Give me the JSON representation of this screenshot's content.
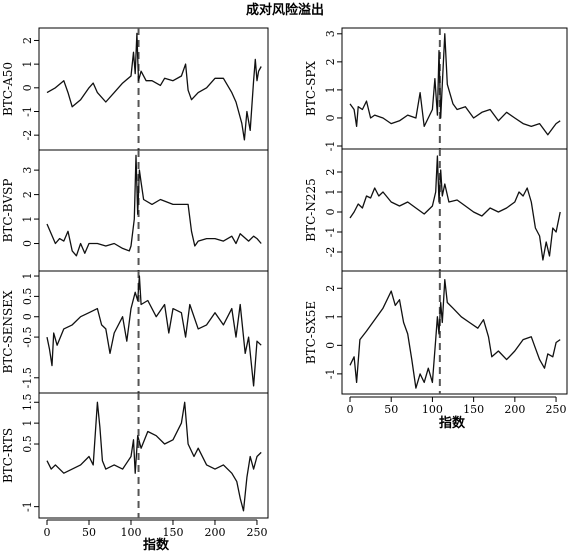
{
  "figure": {
    "title": "成对风险溢出",
    "xlabel": "指数"
  },
  "chart_data": {
    "type": "line",
    "x_range": [
      0,
      256
    ],
    "x_ticks": [
      0,
      50,
      100,
      150,
      200,
      250
    ],
    "event_line_x": [
      108,
      110
    ],
    "panels": [
      {
        "ylabel": "BTC-A50",
        "ylim": [
          -2.5,
          2.4
        ],
        "yticks": [
          -2,
          -1,
          0,
          1,
          2
        ],
        "points": [
          [
            0,
            -0.2
          ],
          [
            10,
            0
          ],
          [
            20,
            0.3
          ],
          [
            25,
            -0.2
          ],
          [
            30,
            -0.8
          ],
          [
            40,
            -0.5
          ],
          [
            50,
            0
          ],
          [
            55,
            0.2
          ],
          [
            60,
            -0.2
          ],
          [
            70,
            -0.6
          ],
          [
            80,
            -0.2
          ],
          [
            90,
            0.2
          ],
          [
            100,
            0.5
          ],
          [
            103,
            1.5
          ],
          [
            105,
            0.6
          ],
          [
            107,
            2.3
          ],
          [
            109,
            0.3
          ],
          [
            112,
            0.7
          ],
          [
            118,
            0.3
          ],
          [
            125,
            0.3
          ],
          [
            135,
            0.1
          ],
          [
            140,
            0.4
          ],
          [
            150,
            0.3
          ],
          [
            160,
            0.5
          ],
          [
            165,
            1.0
          ],
          [
            168,
            -0.1
          ],
          [
            172,
            -0.5
          ],
          [
            180,
            -0.2
          ],
          [
            190,
            0.0
          ],
          [
            200,
            0.4
          ],
          [
            210,
            0.4
          ],
          [
            215,
            0.1
          ],
          [
            220,
            -0.2
          ],
          [
            225,
            -0.6
          ],
          [
            232,
            -1.5
          ],
          [
            235,
            -2.2
          ],
          [
            238,
            -1.0
          ],
          [
            242,
            -1.8
          ],
          [
            246,
            0.3
          ],
          [
            248,
            1.2
          ],
          [
            250,
            0.3
          ],
          [
            252,
            0.7
          ],
          [
            255,
            0.9
          ]
        ]
      },
      {
        "ylabel": "BTC-BVSP",
        "ylim": [
          -1.0,
          3.7
        ],
        "yticks": [
          0,
          1,
          2,
          3
        ],
        "points": [
          [
            0,
            0.8
          ],
          [
            5,
            0.4
          ],
          [
            10,
            0.0
          ],
          [
            15,
            0.2
          ],
          [
            20,
            0.1
          ],
          [
            25,
            0.5
          ],
          [
            30,
            -0.3
          ],
          [
            35,
            -0.5
          ],
          [
            40,
            0.0
          ],
          [
            45,
            -0.4
          ],
          [
            50,
            0.0
          ],
          [
            60,
            0.0
          ],
          [
            70,
            -0.1
          ],
          [
            80,
            0.0
          ],
          [
            90,
            -0.2
          ],
          [
            98,
            -0.3
          ],
          [
            100,
            -0.1
          ],
          [
            104,
            1.0
          ],
          [
            106,
            3.6
          ],
          [
            108,
            1.2
          ],
          [
            110,
            3.0
          ],
          [
            112,
            2.5
          ],
          [
            115,
            1.8
          ],
          [
            125,
            1.6
          ],
          [
            135,
            1.8
          ],
          [
            150,
            1.6
          ],
          [
            168,
            1.6
          ],
          [
            172,
            0.5
          ],
          [
            176,
            -0.1
          ],
          [
            180,
            0.1
          ],
          [
            190,
            0.2
          ],
          [
            200,
            0.2
          ],
          [
            210,
            0.1
          ],
          [
            220,
            0.3
          ],
          [
            225,
            0.0
          ],
          [
            230,
            0.4
          ],
          [
            240,
            0.1
          ],
          [
            246,
            0.3
          ],
          [
            250,
            0.2
          ],
          [
            255,
            0.0
          ]
        ]
      },
      {
        "ylabel": "BTC-SENSEX",
        "ylim": [
          -1.8,
          1.05
        ],
        "yticks": [
          -1.5,
          -0.5,
          0.0,
          0.5,
          1.0
        ],
        "points": [
          [
            0,
            -0.5
          ],
          [
            3,
            -0.8
          ],
          [
            6,
            -1.2
          ],
          [
            8,
            -0.4
          ],
          [
            12,
            -0.7
          ],
          [
            20,
            -0.3
          ],
          [
            30,
            -0.2
          ],
          [
            40,
            0.0
          ],
          [
            50,
            0.1
          ],
          [
            60,
            0.2
          ],
          [
            65,
            -0.2
          ],
          [
            70,
            -0.3
          ],
          [
            75,
            -0.9
          ],
          [
            80,
            -0.4
          ],
          [
            90,
            0.0
          ],
          [
            95,
            -0.6
          ],
          [
            100,
            0.2
          ],
          [
            105,
            0.6
          ],
          [
            108,
            0.4
          ],
          [
            110,
            1.0
          ],
          [
            112,
            0.3
          ],
          [
            120,
            0.4
          ],
          [
            130,
            0.0
          ],
          [
            140,
            0.3
          ],
          [
            145,
            -0.4
          ],
          [
            150,
            0.2
          ],
          [
            160,
            0.1
          ],
          [
            165,
            -0.5
          ],
          [
            170,
            0.3
          ],
          [
            180,
            -0.3
          ],
          [
            190,
            -0.2
          ],
          [
            200,
            0.1
          ],
          [
            210,
            -0.2
          ],
          [
            220,
            0.2
          ],
          [
            225,
            -0.5
          ],
          [
            230,
            0.3
          ],
          [
            236,
            -0.9
          ],
          [
            240,
            -0.5
          ],
          [
            246,
            -1.7
          ],
          [
            250,
            -0.6
          ],
          [
            255,
            -0.7
          ]
        ]
      },
      {
        "ylabel": "BTC-RTS",
        "ylim": [
          -1.2,
          1.65
        ],
        "yticks": [
          -1.0,
          0.5,
          1.0,
          1.5
        ],
        "points": [
          [
            0,
            0.1
          ],
          [
            5,
            -0.1
          ],
          [
            10,
            0.0
          ],
          [
            20,
            -0.2
          ],
          [
            30,
            -0.1
          ],
          [
            40,
            0.0
          ],
          [
            50,
            0.2
          ],
          [
            55,
            0.0
          ],
          [
            60,
            1.5
          ],
          [
            63,
            0.9
          ],
          [
            66,
            0.1
          ],
          [
            70,
            -0.1
          ],
          [
            80,
            0.0
          ],
          [
            90,
            -0.1
          ],
          [
            100,
            0.2
          ],
          [
            103,
            0.6
          ],
          [
            105,
            -0.2
          ],
          [
            108,
            0.7
          ],
          [
            112,
            0.4
          ],
          [
            120,
            0.8
          ],
          [
            130,
            0.7
          ],
          [
            140,
            0.5
          ],
          [
            150,
            0.6
          ],
          [
            160,
            1.0
          ],
          [
            164,
            1.5
          ],
          [
            168,
            0.5
          ],
          [
            175,
            0.2
          ],
          [
            180,
            0.4
          ],
          [
            190,
            0.0
          ],
          [
            200,
            -0.1
          ],
          [
            210,
            0.0
          ],
          [
            220,
            -0.2
          ],
          [
            226,
            -0.4
          ],
          [
            230,
            -0.8
          ],
          [
            234,
            -1.1
          ],
          [
            238,
            -0.3
          ],
          [
            242,
            0.2
          ],
          [
            246,
            -0.1
          ],
          [
            250,
            0.2
          ],
          [
            255,
            0.3
          ]
        ]
      },
      {
        "ylabel": "BTC-SPX",
        "ylim": [
          -1.0,
          3.1
        ],
        "yticks": [
          -1,
          0,
          1,
          2,
          3
        ],
        "points": [
          [
            0,
            0.5
          ],
          [
            5,
            0.3
          ],
          [
            8,
            -0.3
          ],
          [
            10,
            0.4
          ],
          [
            15,
            0.3
          ],
          [
            20,
            0.6
          ],
          [
            25,
            0.0
          ],
          [
            30,
            0.1
          ],
          [
            40,
            0.0
          ],
          [
            50,
            -0.2
          ],
          [
            60,
            -0.1
          ],
          [
            70,
            0.1
          ],
          [
            80,
            0.0
          ],
          [
            85,
            0.9
          ],
          [
            90,
            -0.3
          ],
          [
            100,
            0.3
          ],
          [
            103,
            1.4
          ],
          [
            106,
            0.1
          ],
          [
            108,
            2.4
          ],
          [
            110,
            0.0
          ],
          [
            112,
            1.2
          ],
          [
            115,
            3.0
          ],
          [
            118,
            1.2
          ],
          [
            125,
            0.5
          ],
          [
            130,
            0.3
          ],
          [
            140,
            0.4
          ],
          [
            150,
            0.0
          ],
          [
            160,
            0.2
          ],
          [
            170,
            0.3
          ],
          [
            180,
            -0.1
          ],
          [
            190,
            0.2
          ],
          [
            200,
            0.0
          ],
          [
            210,
            -0.2
          ],
          [
            220,
            -0.3
          ],
          [
            230,
            -0.2
          ],
          [
            240,
            -0.6
          ],
          [
            245,
            -0.4
          ],
          [
            250,
            -0.2
          ],
          [
            255,
            -0.1
          ]
        ]
      },
      {
        "ylabel": "BTC-N225",
        "ylim": [
          -2.8,
          3.0
        ],
        "yticks": [
          -2,
          -1,
          0,
          1,
          2
        ],
        "points": [
          [
            0,
            -0.3
          ],
          [
            5,
            0.0
          ],
          [
            10,
            0.4
          ],
          [
            15,
            0.2
          ],
          [
            20,
            0.8
          ],
          [
            25,
            0.7
          ],
          [
            30,
            1.2
          ],
          [
            35,
            0.8
          ],
          [
            40,
            1.0
          ],
          [
            50,
            0.5
          ],
          [
            60,
            0.3
          ],
          [
            70,
            0.5
          ],
          [
            80,
            0.2
          ],
          [
            90,
            -0.1
          ],
          [
            100,
            0.3
          ],
          [
            104,
            1.0
          ],
          [
            106,
            2.8
          ],
          [
            108,
            0.5
          ],
          [
            110,
            2.1
          ],
          [
            112,
            0.8
          ],
          [
            115,
            1.4
          ],
          [
            120,
            0.5
          ],
          [
            130,
            0.6
          ],
          [
            140,
            0.3
          ],
          [
            150,
            0.0
          ],
          [
            160,
            -0.2
          ],
          [
            170,
            0.2
          ],
          [
            180,
            0.0
          ],
          [
            190,
            0.2
          ],
          [
            200,
            0.5
          ],
          [
            205,
            1.0
          ],
          [
            210,
            0.8
          ],
          [
            215,
            1.2
          ],
          [
            220,
            0.5
          ],
          [
            225,
            -0.8
          ],
          [
            230,
            -1.2
          ],
          [
            234,
            -2.4
          ],
          [
            238,
            -1.5
          ],
          [
            242,
            -2.2
          ],
          [
            246,
            -0.8
          ],
          [
            250,
            -1.0
          ],
          [
            255,
            0.0
          ]
        ]
      },
      {
        "ylabel": "BTC-SX5E",
        "ylim": [
          -1.6,
          2.5
        ],
        "yticks": [
          -1,
          0,
          1,
          2
        ],
        "points": [
          [
            0,
            -0.7
          ],
          [
            5,
            -0.4
          ],
          [
            8,
            -1.3
          ],
          [
            12,
            0.2
          ],
          [
            20,
            0.5
          ],
          [
            30,
            0.9
          ],
          [
            40,
            1.3
          ],
          [
            50,
            1.9
          ],
          [
            55,
            1.4
          ],
          [
            60,
            1.6
          ],
          [
            65,
            0.8
          ],
          [
            70,
            0.4
          ],
          [
            75,
            -0.5
          ],
          [
            80,
            -1.5
          ],
          [
            85,
            -1.0
          ],
          [
            90,
            -1.3
          ],
          [
            95,
            -0.8
          ],
          [
            100,
            -1.3
          ],
          [
            104,
            0.2
          ],
          [
            106,
            1.0
          ],
          [
            108,
            0.4
          ],
          [
            110,
            1.5
          ],
          [
            112,
            0.8
          ],
          [
            115,
            2.3
          ],
          [
            118,
            1.5
          ],
          [
            125,
            1.3
          ],
          [
            135,
            1.0
          ],
          [
            145,
            0.8
          ],
          [
            155,
            0.6
          ],
          [
            162,
            0.9
          ],
          [
            168,
            0.3
          ],
          [
            172,
            -0.4
          ],
          [
            180,
            -0.2
          ],
          [
            190,
            -0.5
          ],
          [
            200,
            -0.2
          ],
          [
            210,
            0.2
          ],
          [
            220,
            0.3
          ],
          [
            225,
            -0.1
          ],
          [
            230,
            -0.5
          ],
          [
            236,
            -0.8
          ],
          [
            240,
            -0.3
          ],
          [
            246,
            -0.4
          ],
          [
            250,
            0.1
          ],
          [
            255,
            0.2
          ]
        ]
      }
    ]
  }
}
